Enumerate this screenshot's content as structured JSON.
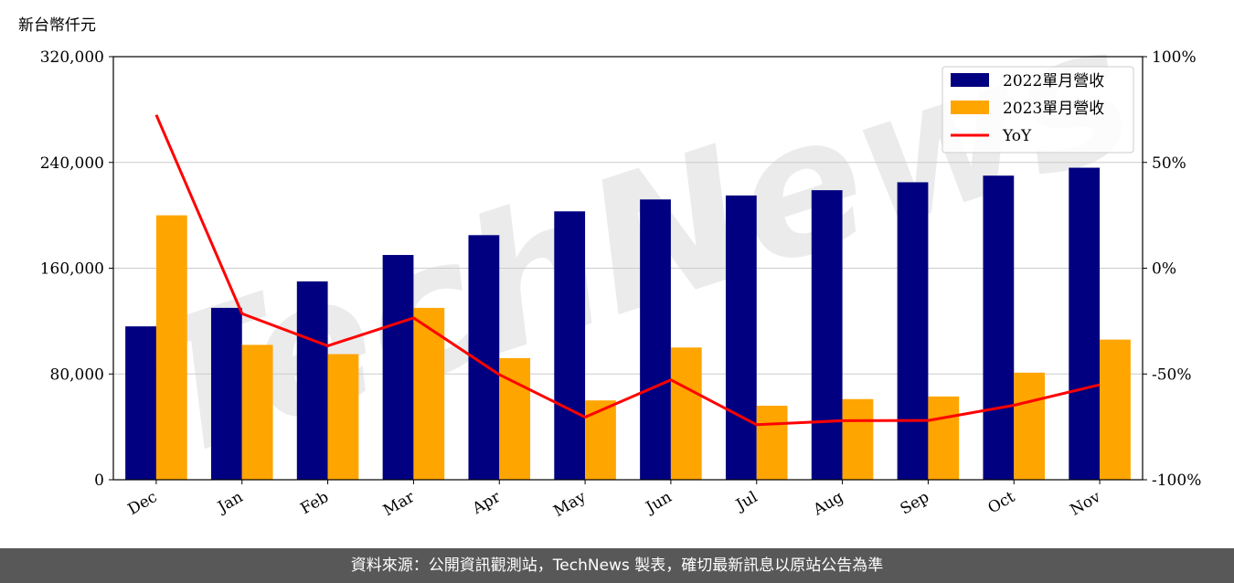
{
  "unit_label": "新台幣仟元",
  "watermark": "TechNews",
  "footer": "資料來源：公開資訊觀測站，TechNews 製表，確切最新訊息以原站公告為準",
  "colors": {
    "series_2022": "#000080",
    "series_2023": "#FFA500",
    "yoy": "#FF0000",
    "grid": "#cccccc"
  },
  "chart_data": {
    "type": "bar",
    "categories": [
      "Dec",
      "Jan",
      "Feb",
      "Mar",
      "Apr",
      "May",
      "Jun",
      "Jul",
      "Aug",
      "Sep",
      "Oct",
      "Nov"
    ],
    "series": [
      {
        "name": "2022單月營收",
        "values": [
          116000,
          130000,
          150000,
          170000,
          185000,
          203000,
          212000,
          215000,
          219000,
          225000,
          230000,
          236000
        ]
      },
      {
        "name": "2023單月營收",
        "values": [
          200000,
          102000,
          95000,
          130000,
          92000,
          60000,
          100000,
          56000,
          61000,
          63000,
          81000,
          106000
        ]
      }
    ],
    "line_series": {
      "name": "YoY",
      "axis": "right",
      "values": [
        72.5,
        -21.5,
        -36.7,
        -23.5,
        -50.3,
        -70.4,
        -52.8,
        -74.0,
        -72.1,
        -72.0,
        -64.8,
        -55.1
      ]
    },
    "ylim": [
      0,
      320000
    ],
    "yticks": [
      "0",
      "80,000",
      "160,000",
      "240,000",
      "320,000"
    ],
    "y2lim": [
      -100,
      100
    ],
    "y2ticks": [
      "-100%",
      "-50%",
      "0%",
      "50%",
      "100%"
    ],
    "grid": true,
    "legend_position": "top-right"
  }
}
